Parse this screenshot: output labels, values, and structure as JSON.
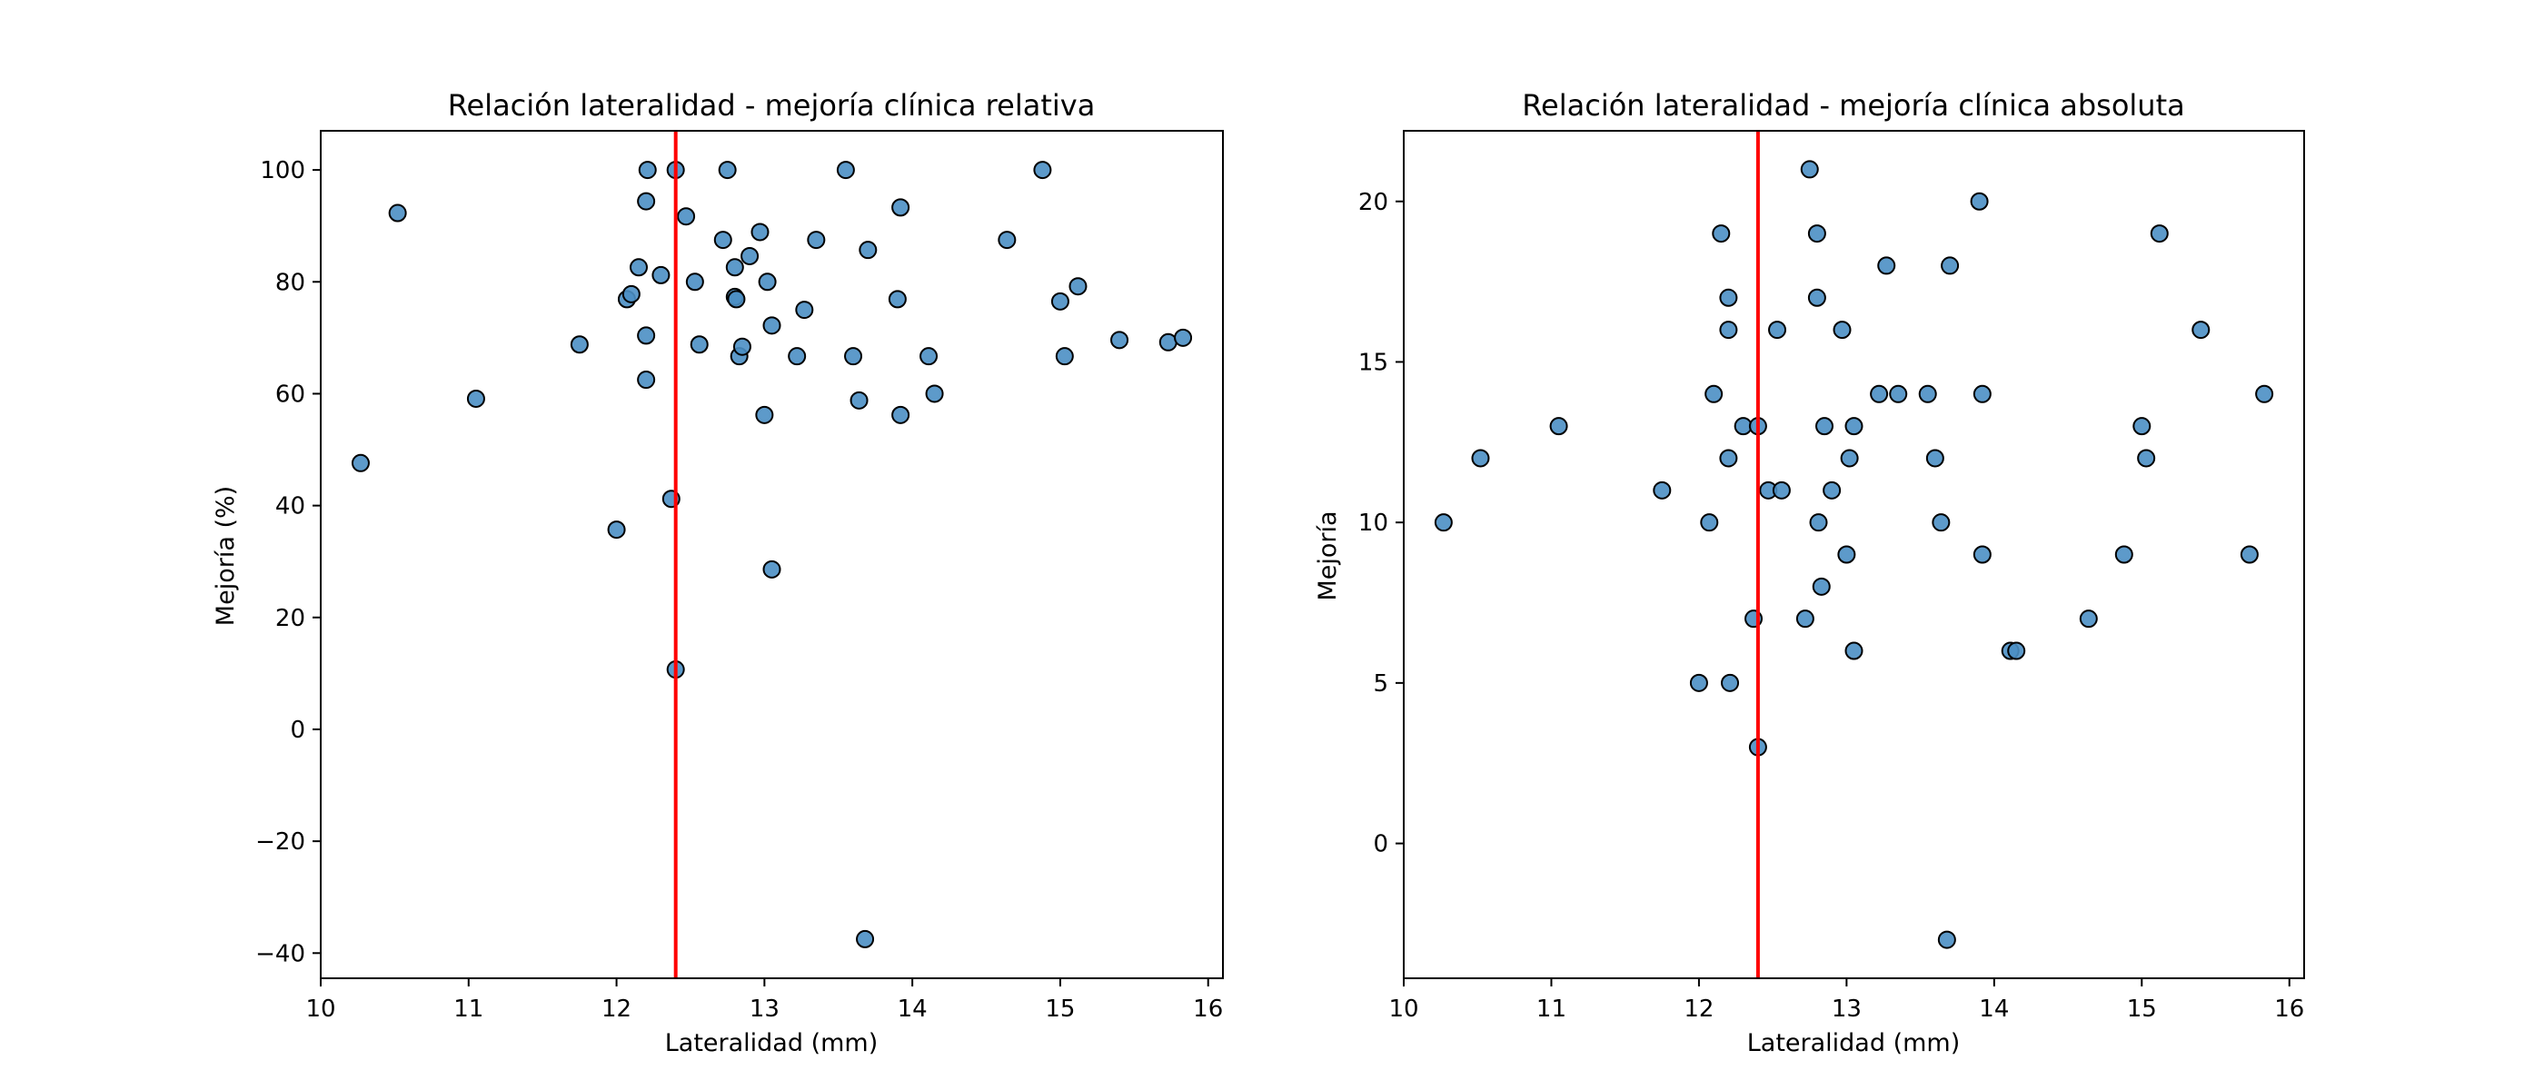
{
  "chart_data": [
    {
      "type": "scatter",
      "title": "Relación lateralidad - mejoría clínica relativa",
      "xlabel": "Lateralidad (mm)",
      "ylabel": "Mejoría (%)",
      "xlim": [
        10,
        16.1
      ],
      "ylim": [
        -44.5,
        107
      ],
      "xticks": [
        10,
        11,
        12,
        13,
        14,
        15,
        16
      ],
      "yticks": [
        -40,
        -20,
        0,
        20,
        40,
        60,
        80,
        100
      ],
      "grid": false,
      "vline": 12.4,
      "vline_color": "#ff0000",
      "point_color": "#4b8fc4",
      "points": [
        [
          10.27,
          47.6
        ],
        [
          10.52,
          92.3
        ],
        [
          11.05,
          59.1
        ],
        [
          11.75,
          68.8
        ],
        [
          12.0,
          35.7
        ],
        [
          12.07,
          76.9
        ],
        [
          12.1,
          77.8
        ],
        [
          12.15,
          82.6
        ],
        [
          12.2,
          70.4
        ],
        [
          12.2,
          62.5
        ],
        [
          12.2,
          94.4
        ],
        [
          12.21,
          100
        ],
        [
          12.3,
          81.2
        ],
        [
          12.37,
          41.2
        ],
        [
          12.4,
          100
        ],
        [
          12.4,
          10.7
        ],
        [
          12.47,
          91.7
        ],
        [
          12.53,
          80
        ],
        [
          12.56,
          68.8
        ],
        [
          12.72,
          87.5
        ],
        [
          12.75,
          100
        ],
        [
          12.8,
          82.6
        ],
        [
          12.8,
          77.3
        ],
        [
          12.81,
          76.9
        ],
        [
          12.83,
          66.7
        ],
        [
          12.85,
          68.4
        ],
        [
          12.9,
          84.6
        ],
        [
          12.97,
          88.9
        ],
        [
          13.0,
          56.2
        ],
        [
          13.02,
          80
        ],
        [
          13.05,
          72.2
        ],
        [
          13.05,
          28.6
        ],
        [
          13.22,
          66.7
        ],
        [
          13.27,
          75
        ],
        [
          13.35,
          87.5
        ],
        [
          13.55,
          100
        ],
        [
          13.6,
          66.7
        ],
        [
          13.64,
          58.8
        ],
        [
          13.7,
          85.7
        ],
        [
          13.68,
          -37.5
        ],
        [
          13.9,
          76.9
        ],
        [
          13.92,
          93.3
        ],
        [
          13.92,
          56.2
        ],
        [
          14.11,
          66.7
        ],
        [
          14.15,
          60
        ],
        [
          14.64,
          87.5
        ],
        [
          14.88,
          100
        ],
        [
          15.0,
          76.5
        ],
        [
          15.03,
          66.7
        ],
        [
          15.12,
          79.2
        ],
        [
          15.4,
          69.6
        ],
        [
          15.73,
          69.2
        ],
        [
          15.83,
          70
        ]
      ]
    },
    {
      "type": "scatter",
      "title": "Relación lateralidad - mejoría clínica absoluta",
      "xlabel": "Lateralidad (mm)",
      "ylabel": "Mejoría",
      "xlim": [
        10,
        16.1
      ],
      "ylim": [
        -4.2,
        22.2
      ],
      "xticks": [
        10,
        11,
        12,
        13,
        14,
        15,
        16
      ],
      "yticks": [
        0,
        5,
        10,
        15,
        20
      ],
      "grid": false,
      "vline": 12.4,
      "vline_color": "#ff0000",
      "point_color": "#4b8fc4",
      "points": [
        [
          10.27,
          10
        ],
        [
          10.52,
          12
        ],
        [
          11.05,
          13
        ],
        [
          11.75,
          11
        ],
        [
          12.0,
          5
        ],
        [
          12.07,
          10
        ],
        [
          12.1,
          14
        ],
        [
          12.15,
          19
        ],
        [
          12.2,
          17
        ],
        [
          12.2,
          16
        ],
        [
          12.2,
          12
        ],
        [
          12.21,
          5
        ],
        [
          12.3,
          13
        ],
        [
          12.37,
          7
        ],
        [
          12.4,
          13
        ],
        [
          12.4,
          3
        ],
        [
          12.47,
          11
        ],
        [
          12.53,
          16
        ],
        [
          12.56,
          11
        ],
        [
          12.72,
          7
        ],
        [
          12.75,
          21
        ],
        [
          12.8,
          19
        ],
        [
          12.8,
          17
        ],
        [
          12.81,
          10
        ],
        [
          12.83,
          8
        ],
        [
          12.85,
          13
        ],
        [
          12.9,
          11
        ],
        [
          12.97,
          16
        ],
        [
          13.0,
          9
        ],
        [
          13.02,
          12
        ],
        [
          13.05,
          13
        ],
        [
          13.05,
          6
        ],
        [
          13.22,
          14
        ],
        [
          13.27,
          18
        ],
        [
          13.35,
          14
        ],
        [
          13.55,
          14
        ],
        [
          13.6,
          12
        ],
        [
          13.64,
          10
        ],
        [
          13.7,
          18
        ],
        [
          13.68,
          -3
        ],
        [
          13.9,
          20
        ],
        [
          13.92,
          14
        ],
        [
          13.92,
          9
        ],
        [
          14.11,
          6
        ],
        [
          14.15,
          6
        ],
        [
          14.64,
          7
        ],
        [
          14.88,
          9
        ],
        [
          15.0,
          13
        ],
        [
          15.03,
          12
        ],
        [
          15.12,
          19
        ],
        [
          15.4,
          16
        ],
        [
          15.73,
          9
        ],
        [
          15.83,
          14
        ]
      ]
    }
  ]
}
